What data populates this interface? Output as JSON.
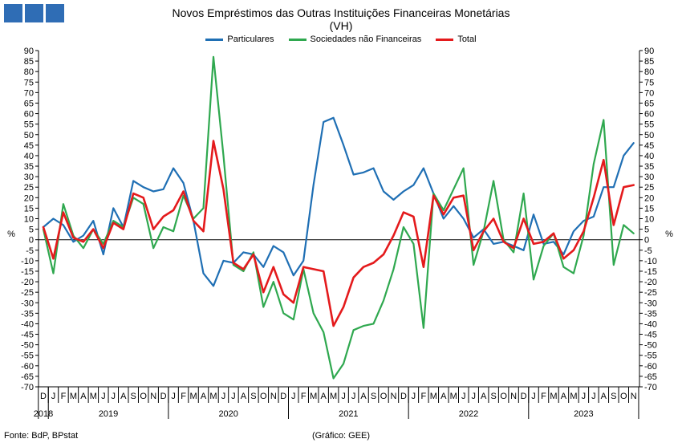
{
  "colors": {
    "logo": "#2f6db5",
    "particulares": "#1f6fb4",
    "sociedades": "#2fa84f",
    "total": "#e41a1c"
  },
  "footer": {
    "source": "Fonte: BdP, BPstat",
    "credit": "(Gráfico: GEE)"
  },
  "chart_data": {
    "type": "line",
    "title": "Novos Empréstimos das Outras Instituições Financeiras Monetárias",
    "subtitle": "(VH)",
    "ylabel_left": "%",
    "ylabel_right": "%",
    "ylim": [
      -70,
      90
    ],
    "y_ticks": [
      90,
      85,
      80,
      75,
      70,
      65,
      60,
      55,
      50,
      45,
      40,
      35,
      30,
      25,
      20,
      15,
      10,
      5,
      0,
      -5,
      -10,
      -15,
      -20,
      -25,
      -30,
      -35,
      -40,
      -45,
      -50,
      -55,
      -60,
      -65,
      -70
    ],
    "grid": false,
    "legend_position": "top",
    "x": [
      "D",
      "J",
      "F",
      "M",
      "A",
      "M",
      "J",
      "J",
      "A",
      "S",
      "O",
      "N",
      "D",
      "J",
      "F",
      "M",
      "A",
      "M",
      "J",
      "J",
      "A",
      "S",
      "O",
      "N",
      "D",
      "J",
      "F",
      "M",
      "A",
      "M",
      "J",
      "J",
      "A",
      "S",
      "O",
      "N",
      "D",
      "J",
      "F",
      "M",
      "A",
      "M",
      "J",
      "J",
      "A",
      "S",
      "O",
      "N",
      "D",
      "J",
      "F",
      "M",
      "A",
      "M",
      "J",
      "J",
      "A",
      "S",
      "O",
      "N"
    ],
    "years": [
      {
        "label": "2018",
        "start": 0,
        "end": 0
      },
      {
        "label": "2019",
        "start": 1,
        "end": 12
      },
      {
        "label": "2020",
        "start": 13,
        "end": 24
      },
      {
        "label": "2021",
        "start": 25,
        "end": 36
      },
      {
        "label": "2022",
        "start": 37,
        "end": 48
      },
      {
        "label": "2023",
        "start": 49,
        "end": 59
      }
    ],
    "series": [
      {
        "name": "Particulares",
        "color": "#1f6fb4",
        "values": [
          6,
          10,
          7,
          -1,
          2,
          9,
          -7,
          15,
          6,
          28,
          25,
          23,
          24,
          34,
          27,
          9,
          -16,
          -22,
          -10,
          -11,
          -6,
          -7,
          -13,
          -3,
          -6,
          -17,
          -10,
          26,
          56,
          58,
          45,
          31,
          32,
          34,
          23,
          19,
          23,
          26,
          34,
          22,
          10,
          16,
          10,
          1,
          5,
          -2,
          -1,
          -3,
          -5,
          12,
          -2,
          -1,
          -7,
          4,
          9,
          11,
          25,
          25,
          40,
          46
        ]
      },
      {
        "name": "Sociedades não Financeiras",
        "color": "#2fa84f",
        "values": [
          5,
          -16,
          17,
          2,
          -4,
          5,
          -2,
          9,
          6,
          20,
          17,
          -4,
          6,
          4,
          21,
          10,
          15,
          87,
          40,
          -12,
          -15,
          -6,
          -32,
          -20,
          -35,
          -38,
          -14,
          -35,
          -44,
          -66,
          -59,
          -43,
          -41,
          -40,
          -29,
          -14,
          6,
          -2,
          -42,
          22,
          14,
          24,
          34,
          -12,
          4,
          28,
          0,
          -6,
          22,
          -19,
          -3,
          3,
          -13,
          -16,
          2,
          36,
          57,
          -12,
          7,
          3
        ]
      },
      {
        "name": "Total",
        "color": "#e41a1c",
        "values": [
          6,
          -9,
          13,
          1,
          -1,
          5,
          -4,
          8,
          5,
          22,
          20,
          5,
          11,
          14,
          23,
          9,
          4,
          47,
          24,
          -11,
          -14,
          -7,
          -25,
          -13,
          -26,
          -30,
          -13,
          -14,
          -15,
          -41,
          -32,
          -18,
          -13,
          -11,
          -7,
          2,
          13,
          11,
          -13,
          21,
          12,
          20,
          21,
          -5,
          4,
          10,
          -1,
          -4,
          10,
          -2,
          -1,
          3,
          -9,
          -5,
          4,
          20,
          38,
          7,
          25,
          26
        ]
      }
    ]
  }
}
